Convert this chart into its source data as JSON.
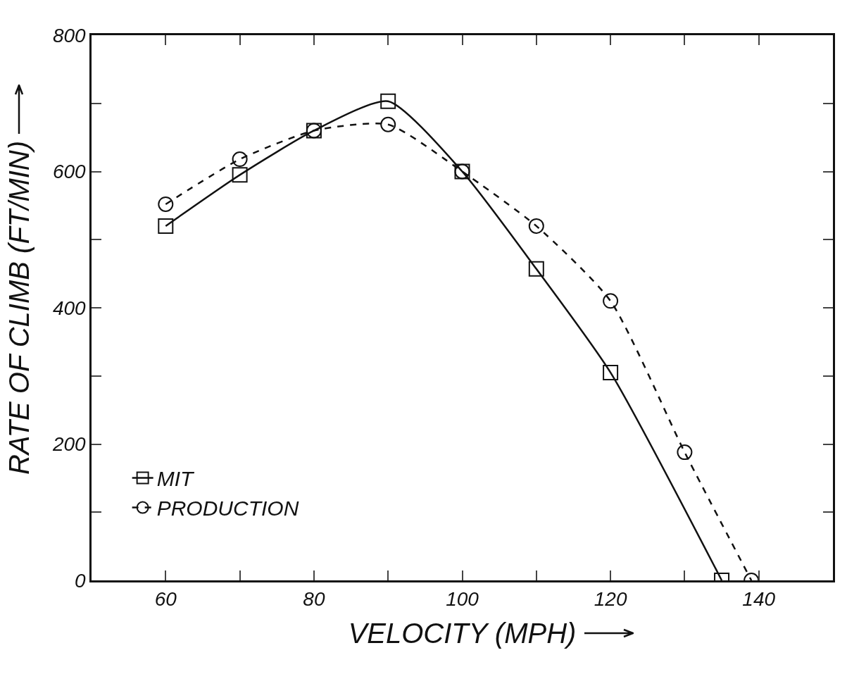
{
  "chart_data": {
    "type": "line",
    "xlabel": "VELOCITY (MPH)",
    "ylabel": "RATE OF CLIMB (FT/MIN)",
    "xlim": [
      50,
      150
    ],
    "xticks": [
      60,
      {
        "value": 70,
        "label": null
      },
      80,
      {
        "value": 90,
        "label": null
      },
      100,
      {
        "value": 110,
        "label": null
      },
      120,
      {
        "value": 130,
        "label": null
      },
      140
    ],
    "ylim": [
      0,
      800
    ],
    "yticks": [
      0,
      {
        "value": 100,
        "label": null
      },
      200,
      {
        "value": 300,
        "label": null
      },
      400,
      {
        "value": 500,
        "label": null
      },
      600,
      {
        "value": 700,
        "label": null
      },
      800
    ],
    "grid": false,
    "legend": "bottom left",
    "series": [
      {
        "name": "MIT",
        "color": "#111111",
        "marker": "square",
        "line_style": "solid",
        "x": [
          60,
          70,
          80,
          90,
          100,
          110,
          120,
          135
        ],
        "values": [
          520,
          595,
          660,
          703,
          600,
          457,
          305,
          0
        ]
      },
      {
        "name": "PRODUCTION",
        "color": "#111111",
        "marker": "circle",
        "line_style": "dashed",
        "x": [
          60,
          70,
          80,
          90,
          100,
          110,
          120,
          130,
          139
        ],
        "values": [
          552,
          618,
          660,
          669,
          600,
          520,
          410,
          188,
          0
        ]
      }
    ]
  }
}
